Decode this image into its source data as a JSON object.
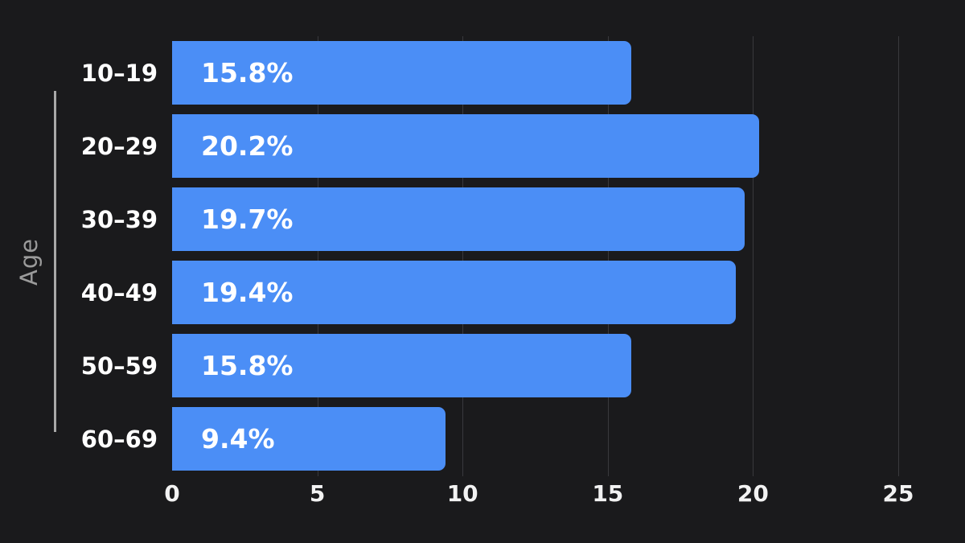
{
  "colors": {
    "background": "#1a1a1c",
    "bar": "#4b8ef6",
    "value_label": "#ffffff",
    "category_label": "#ffffff",
    "tick_label": "#f2f2f2",
    "gridline": "#39393d",
    "axis_line": "#a8a8a8",
    "axis_title": "#9b9b9b"
  },
  "chart_data": {
    "type": "bar",
    "orientation": "horizontal",
    "title": "",
    "xlabel": "",
    "ylabel": "Age",
    "categories": [
      "10–19",
      "20–29",
      "30–39",
      "40–49",
      "50–59",
      "60–69"
    ],
    "values": [
      15.8,
      20.2,
      19.7,
      19.4,
      15.8,
      9.4
    ],
    "value_labels": [
      "15.8%",
      "20.2%",
      "19.7%",
      "19.4%",
      "15.8%",
      "9.4%"
    ],
    "xlim": [
      0,
      25
    ],
    "xticks": [
      0,
      5,
      10,
      15,
      20,
      25
    ],
    "grid": "vertical-behind-bars",
    "legend": "none"
  }
}
